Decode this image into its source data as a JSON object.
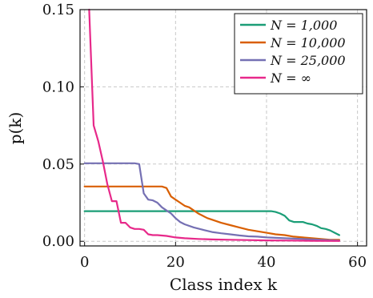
{
  "chart_data": {
    "type": "line",
    "xlabel": "Class index k",
    "ylabel": "p(k)",
    "xlim": [
      -1,
      62
    ],
    "ylim": [
      -0.003,
      0.15
    ],
    "xticks": [
      0,
      20,
      40,
      60
    ],
    "xtick_labels": [
      "0",
      "20",
      "40",
      "60"
    ],
    "yticks": [
      0,
      0.05,
      0.1,
      0.15
    ],
    "ytick_labels": [
      "0.00",
      "0.05",
      "0.10",
      "0.15"
    ],
    "grid": true,
    "legend_position": "top-right",
    "series": [
      {
        "name": "N = 1,000",
        "color": "#1b9e77",
        "x": [
          0,
          5,
          10,
          15,
          20,
          25,
          30,
          35,
          40,
          41,
          42,
          43,
          44,
          45,
          46,
          47,
          48,
          49,
          50,
          51,
          52,
          53,
          54,
          55,
          56
        ],
        "y": [
          0.0195,
          0.0195,
          0.0195,
          0.0195,
          0.0195,
          0.0195,
          0.0195,
          0.0195,
          0.0195,
          0.0195,
          0.019,
          0.018,
          0.0165,
          0.0135,
          0.0125,
          0.0125,
          0.0125,
          0.0115,
          0.011,
          0.01,
          0.0085,
          0.008,
          0.007,
          0.0055,
          0.004
        ]
      },
      {
        "name": "N = 10,000",
        "color": "#d95f02",
        "x": [
          0,
          5,
          10,
          15,
          16,
          17,
          18,
          19,
          20,
          21,
          22,
          23,
          24,
          25,
          26,
          27,
          28,
          30,
          32,
          34,
          36,
          38,
          40,
          42,
          44,
          46,
          48,
          50,
          52,
          54,
          56
        ],
        "y": [
          0.0355,
          0.0355,
          0.0355,
          0.0355,
          0.0355,
          0.0355,
          0.0345,
          0.029,
          0.027,
          0.025,
          0.023,
          0.022,
          0.02,
          0.018,
          0.0165,
          0.015,
          0.014,
          0.012,
          0.0105,
          0.009,
          0.0075,
          0.0065,
          0.0055,
          0.0045,
          0.004,
          0.003,
          0.0025,
          0.002,
          0.0015,
          0.001,
          0.001
        ]
      },
      {
        "name": "N = 25,000",
        "color": "#7570b3",
        "x": [
          0,
          3,
          6,
          9,
          11,
          12,
          13,
          14,
          15,
          16,
          17,
          18,
          19,
          20,
          21,
          22,
          24,
          26,
          28,
          30,
          32,
          34,
          36,
          38,
          40,
          44,
          48,
          52,
          56
        ],
        "y": [
          0.0505,
          0.0505,
          0.0505,
          0.0505,
          0.0505,
          0.05,
          0.031,
          0.027,
          0.0265,
          0.025,
          0.022,
          0.02,
          0.018,
          0.015,
          0.0125,
          0.011,
          0.009,
          0.0075,
          0.006,
          0.0052,
          0.0045,
          0.0038,
          0.0032,
          0.003,
          0.0025,
          0.002,
          0.0015,
          0.001,
          0.0005
        ]
      },
      {
        "name": "N = ∞",
        "color": "#e7298a",
        "x": [
          1,
          2,
          3,
          4,
          5,
          6,
          7,
          8,
          9,
          10,
          11,
          12,
          13,
          14,
          15,
          16,
          18,
          20,
          22,
          25,
          28,
          32,
          36,
          40,
          45,
          50,
          56
        ],
        "y": [
          0.15,
          0.075,
          0.065,
          0.052,
          0.037,
          0.026,
          0.026,
          0.012,
          0.012,
          0.009,
          0.008,
          0.008,
          0.0075,
          0.0045,
          0.004,
          0.004,
          0.0035,
          0.0025,
          0.002,
          0.0015,
          0.0012,
          0.001,
          0.0008,
          0.0006,
          0.0005,
          0.0003,
          0.0002
        ]
      }
    ]
  }
}
